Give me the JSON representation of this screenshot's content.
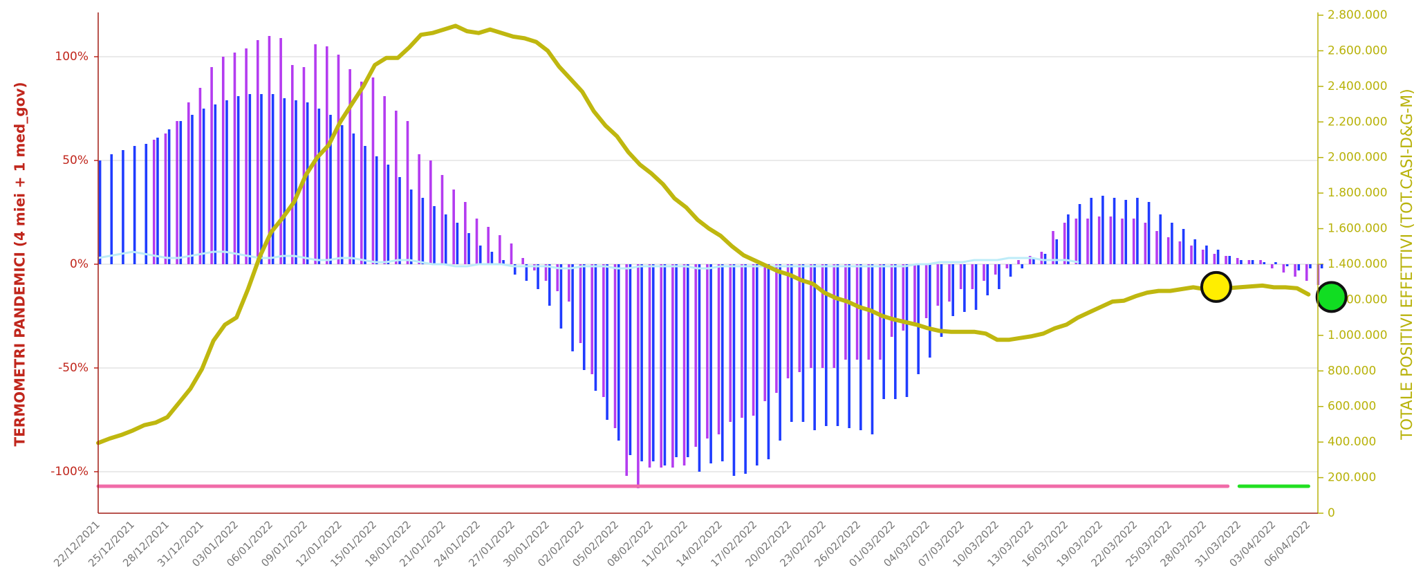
{
  "chart_data": {
    "type": "combo",
    "y_label": "TERMOMETRI PANDEMICI (4 miei + 1 med_gov)",
    "y2_label": "TOTALE POSITIVI EFFETTIVI (TOT.CASI-D&G-M)",
    "grid": true,
    "ylim": [
      -120,
      120
    ],
    "yticks": [
      {
        "value": -100,
        "label": "-100%"
      },
      {
        "value": -50,
        "label": "-50%"
      },
      {
        "value": 0,
        "label": "0%"
      },
      {
        "value": 50,
        "label": "50%"
      },
      {
        "value": 100,
        "label": "100%"
      }
    ],
    "y2lim": [
      0,
      2800000
    ],
    "y2ticks": [
      0,
      {
        "value": 200000,
        "label": "200.000"
      },
      {
        "value": 400000,
        "label": "400.000"
      },
      {
        "value": 600000,
        "label": "600.000"
      },
      {
        "value": 800000,
        "label": "800.000"
      },
      {
        "value": 1000000,
        "label": "1.000.000"
      },
      {
        "value": 1200000,
        "label": "1.200.000"
      },
      {
        "value": 1400000,
        "label": "1.400.000"
      },
      {
        "value": 1600000,
        "label": "1.600.000"
      },
      {
        "value": 1800000,
        "label": "1.800.000"
      },
      {
        "value": 2000000,
        "label": "2.000.000"
      },
      {
        "value": 2200000,
        "label": "2.200.000"
      },
      {
        "value": 2400000,
        "label": "2.400.000"
      },
      {
        "value": 2600000,
        "label": "2.600.000"
      },
      {
        "value": 2800000,
        "label": "2.800.000"
      }
    ],
    "categories": [
      "22/12/2021",
      null,
      null,
      "25/12/2021",
      null,
      null,
      "28/12/2021",
      null,
      null,
      "31/12/2021",
      null,
      null,
      "03/01/2022",
      null,
      null,
      "06/01/2022",
      null,
      null,
      "09/01/2022",
      null,
      null,
      "12/01/2022",
      null,
      null,
      "15/01/2022",
      null,
      null,
      "18/01/2022",
      null,
      null,
      "21/01/2022",
      null,
      null,
      "24/01/2022",
      null,
      null,
      "27/01/2022",
      null,
      null,
      "30/01/2022",
      null,
      null,
      "02/02/2022",
      null,
      null,
      "05/02/2022",
      null,
      null,
      "08/02/2022",
      null,
      null,
      "11/02/2022",
      null,
      null,
      "14/02/2022",
      null,
      null,
      "17/02/2022",
      null,
      null,
      "20/02/2022",
      null,
      null,
      "23/02/2022",
      null,
      null,
      "26/02/2022",
      null,
      null,
      "01/03/2022",
      null,
      null,
      "04/03/2022",
      null,
      null,
      "07/03/2022",
      null,
      null,
      "10/03/2022",
      null,
      null,
      "13/03/2022",
      null,
      null,
      "16/03/2022",
      null,
      null,
      "19/03/2022",
      null,
      null,
      "22/03/2022",
      null,
      null,
      "25/03/2022",
      null,
      null,
      "28/03/2022",
      null,
      null,
      "31/03/2022",
      null,
      null,
      "03/04/2022",
      null,
      null,
      "06/04/2022",
      null,
      null
    ],
    "series": [
      {
        "type": "bar",
        "color": "#b43cf0",
        "offset": -1,
        "values": [
          null,
          null,
          null,
          null,
          null,
          60,
          63,
          69,
          78,
          85,
          95,
          100,
          102,
          104,
          108,
          110,
          109,
          96,
          95,
          106,
          105,
          101,
          94,
          88,
          90,
          81,
          74,
          69,
          53,
          50,
          43,
          36,
          30,
          22,
          18,
          14,
          10,
          3,
          -3,
          -8,
          -13,
          -18,
          -38,
          -53,
          -64,
          -79,
          -102,
          -108,
          -98,
          -98,
          -98,
          -97,
          -88,
          -84,
          -82,
          -76,
          -74,
          -73,
          -66,
          -62,
          -55,
          -52,
          -50,
          -50,
          -50,
          -46,
          -46,
          -46,
          -46,
          -35,
          -32,
          -28,
          -26,
          -20,
          -18,
          -12,
          -12,
          -8,
          -5,
          -2,
          2,
          4,
          6,
          16,
          20,
          22,
          22,
          23,
          23,
          22,
          22,
          20,
          16,
          13,
          11,
          9,
          7,
          5,
          4,
          3,
          2,
          2,
          -2,
          -4,
          -6,
          -8,
          -10,
          null
        ]
      },
      {
        "type": "bar",
        "color": "#1f3cff",
        "offset": 1,
        "values": [
          50,
          53,
          55,
          57,
          58,
          61,
          65,
          69,
          72,
          75,
          77,
          79,
          81,
          82,
          82,
          82,
          80,
          79,
          78,
          75,
          72,
          67,
          63,
          57,
          52,
          48,
          42,
          36,
          32,
          28,
          24,
          20,
          15,
          9,
          6,
          2,
          -5,
          -8,
          -12,
          -20,
          -31,
          -42,
          -51,
          -61,
          -75,
          -85,
          -92,
          -95,
          -95,
          -97,
          -93,
          -93,
          -100,
          -96,
          -95,
          -102,
          -101,
          -97,
          -94,
          -85,
          -76,
          -76,
          -80,
          -78,
          -78,
          -79,
          -80,
          -82,
          -65,
          -65,
          -64,
          -53,
          -45,
          -35,
          -25,
          -23,
          -22,
          -15,
          -12,
          -6,
          -2,
          3,
          5,
          12,
          24,
          29,
          32,
          33,
          32,
          31,
          32,
          30,
          24,
          20,
          17,
          12,
          9,
          7,
          4,
          2,
          2,
          1,
          1,
          -1,
          -3,
          -2,
          -2,
          null
        ]
      },
      {
        "type": "line",
        "color": "#bdecf8",
        "width": 3,
        "values": [
          3,
          4,
          5,
          6,
          5,
          4,
          3,
          3,
          4,
          5,
          6,
          6,
          5,
          4,
          3,
          3,
          4,
          4,
          3,
          2,
          2,
          3,
          3,
          2,
          1,
          1,
          2,
          2,
          1,
          0,
          0,
          -1,
          -1,
          0,
          0,
          0,
          -1,
          -1,
          -1,
          -1,
          -2,
          -2,
          -1,
          -1,
          -1,
          -2,
          -2,
          -1,
          -1,
          -1,
          -1,
          -1,
          -2,
          -2,
          -1,
          -1,
          -1,
          -1,
          -1,
          -1,
          -1,
          -1,
          -1,
          -1,
          -1,
          -1,
          -1,
          -1,
          -1,
          -1,
          -1,
          0,
          0,
          1,
          1,
          1,
          2,
          2,
          2,
          3,
          3,
          3,
          2,
          2,
          2,
          1,
          null,
          null,
          null,
          null,
          null,
          null,
          null,
          null,
          null,
          null,
          null,
          null,
          null,
          null,
          null,
          null,
          null,
          null,
          null,
          null,
          null,
          null
        ]
      },
      {
        "type": "line",
        "color": "#f06ba8",
        "width": 5,
        "values": [
          -107,
          -107,
          -107,
          -107,
          -107,
          -107,
          -107,
          -107,
          -107,
          -107,
          -107,
          -107,
          -107,
          -107,
          -107,
          -107,
          -107,
          -107,
          -107,
          -107,
          -107,
          -107,
          -107,
          -107,
          -107,
          -107,
          -107,
          -107,
          -107,
          -107,
          -107,
          -107,
          -107,
          -107,
          -107,
          -107,
          -107,
          -107,
          -107,
          -107,
          -107,
          -107,
          -107,
          -107,
          -107,
          -107,
          -107,
          -107,
          -107,
          -107,
          -107,
          -107,
          -107,
          -107,
          -107,
          -107,
          -107,
          -107,
          -107,
          -107,
          -107,
          -107,
          -107,
          -107,
          -107,
          -107,
          -107,
          -107,
          -107,
          -107,
          -107,
          -107,
          -107,
          -107,
          -107,
          -107,
          -107,
          -107,
          -107,
          -107,
          -107,
          -107,
          -107,
          -107,
          -107,
          -107,
          -107,
          -107,
          -107,
          -107,
          -107,
          -107,
          -107,
          -107,
          -107,
          -107,
          -107,
          -107,
          -107,
          null,
          null,
          null,
          null,
          null,
          null,
          null,
          null,
          null
        ]
      },
      {
        "type": "line",
        "color": "#22e022",
        "width": 5,
        "values": [
          null,
          null,
          null,
          null,
          null,
          null,
          null,
          null,
          null,
          null,
          null,
          null,
          null,
          null,
          null,
          null,
          null,
          null,
          null,
          null,
          null,
          null,
          null,
          null,
          null,
          null,
          null,
          null,
          null,
          null,
          null,
          null,
          null,
          null,
          null,
          null,
          null,
          null,
          null,
          null,
          null,
          null,
          null,
          null,
          null,
          null,
          null,
          null,
          null,
          null,
          null,
          null,
          null,
          null,
          null,
          null,
          null,
          null,
          null,
          null,
          null,
          null,
          null,
          null,
          null,
          null,
          null,
          null,
          null,
          null,
          null,
          null,
          null,
          null,
          null,
          null,
          null,
          null,
          null,
          null,
          null,
          null,
          null,
          null,
          null,
          null,
          null,
          null,
          null,
          null,
          null,
          null,
          null,
          null,
          null,
          null,
          null,
          null,
          null,
          -107,
          -107,
          -107,
          -107,
          -107,
          -107,
          -107,
          null,
          null
        ]
      },
      {
        "type": "line",
        "axis": "y2",
        "color": "#bfb70f",
        "width": 6,
        "values": [
          395000,
          420000,
          440000,
          465000,
          495000,
          510000,
          540000,
          620000,
          700000,
          810000,
          970000,
          1060000,
          1100000,
          1260000,
          1440000,
          1580000,
          1660000,
          1750000,
          1900000,
          2000000,
          2070000,
          2200000,
          2300000,
          2400000,
          2520000,
          2560000,
          2560000,
          2620000,
          2690000,
          2700000,
          2720000,
          2740000,
          2710000,
          2700000,
          2720000,
          2700000,
          2680000,
          2670000,
          2650000,
          2600000,
          2510000,
          2440000,
          2370000,
          2260000,
          2180000,
          2120000,
          2030000,
          1960000,
          1910000,
          1850000,
          1770000,
          1720000,
          1650000,
          1600000,
          1560000,
          1500000,
          1450000,
          1420000,
          1390000,
          1360000,
          1340000,
          1310000,
          1290000,
          1240000,
          1210000,
          1190000,
          1160000,
          1140000,
          1110000,
          1090000,
          1075000,
          1060000,
          1040000,
          1025000,
          1020000,
          1020000,
          1020000,
          1010000,
          975000,
          975000,
          985000,
          995000,
          1010000,
          1040000,
          1060000,
          1100000,
          1130000,
          1160000,
          1190000,
          1195000,
          1220000,
          1240000,
          1250000,
          1250000,
          1260000,
          1270000,
          1260000,
          1265000,
          1265000,
          1270000,
          1275000,
          1280000,
          1270000,
          1270000,
          1265000,
          1230000,
          null,
          null
        ]
      },
      {
        "type": "scatter",
        "axis": "y2",
        "color": "#ffee00",
        "values": [
          null,
          null,
          null,
          null,
          null,
          null,
          null,
          null,
          null,
          null,
          null,
          null,
          null,
          null,
          null,
          null,
          null,
          null,
          null,
          null,
          null,
          null,
          null,
          null,
          null,
          null,
          null,
          null,
          null,
          null,
          null,
          null,
          null,
          null,
          null,
          null,
          null,
          null,
          null,
          null,
          null,
          null,
          null,
          null,
          null,
          null,
          null,
          null,
          null,
          null,
          null,
          null,
          null,
          null,
          null,
          null,
          null,
          null,
          null,
          null,
          null,
          null,
          null,
          null,
          null,
          null,
          null,
          null,
          null,
          null,
          null,
          null,
          null,
          null,
          null,
          null,
          null,
          null,
          null,
          null,
          null,
          null,
          null,
          null,
          null,
          null,
          null,
          null,
          null,
          null,
          null,
          null,
          null,
          null,
          null,
          null,
          null,
          1272000,
          null,
          null,
          null,
          null,
          null,
          null,
          null,
          null,
          null,
          null
        ]
      },
      {
        "type": "scatter",
        "axis": "y2",
        "color": "#11dd22",
        "values": [
          null,
          null,
          null,
          null,
          null,
          null,
          null,
          null,
          null,
          null,
          null,
          null,
          null,
          null,
          null,
          null,
          null,
          null,
          null,
          null,
          null,
          null,
          null,
          null,
          null,
          null,
          null,
          null,
          null,
          null,
          null,
          null,
          null,
          null,
          null,
          null,
          null,
          null,
          null,
          null,
          null,
          null,
          null,
          null,
          null,
          null,
          null,
          null,
          null,
          null,
          null,
          null,
          null,
          null,
          null,
          null,
          null,
          null,
          null,
          null,
          null,
          null,
          null,
          null,
          null,
          null,
          null,
          null,
          null,
          null,
          null,
          null,
          null,
          null,
          null,
          null,
          null,
          null,
          null,
          null,
          null,
          null,
          null,
          null,
          null,
          null,
          null,
          null,
          null,
          null,
          null,
          null,
          null,
          null,
          null,
          null,
          null,
          null,
          null,
          null,
          null,
          null,
          null,
          null,
          null,
          null,
          null,
          1216000
        ]
      }
    ]
  }
}
